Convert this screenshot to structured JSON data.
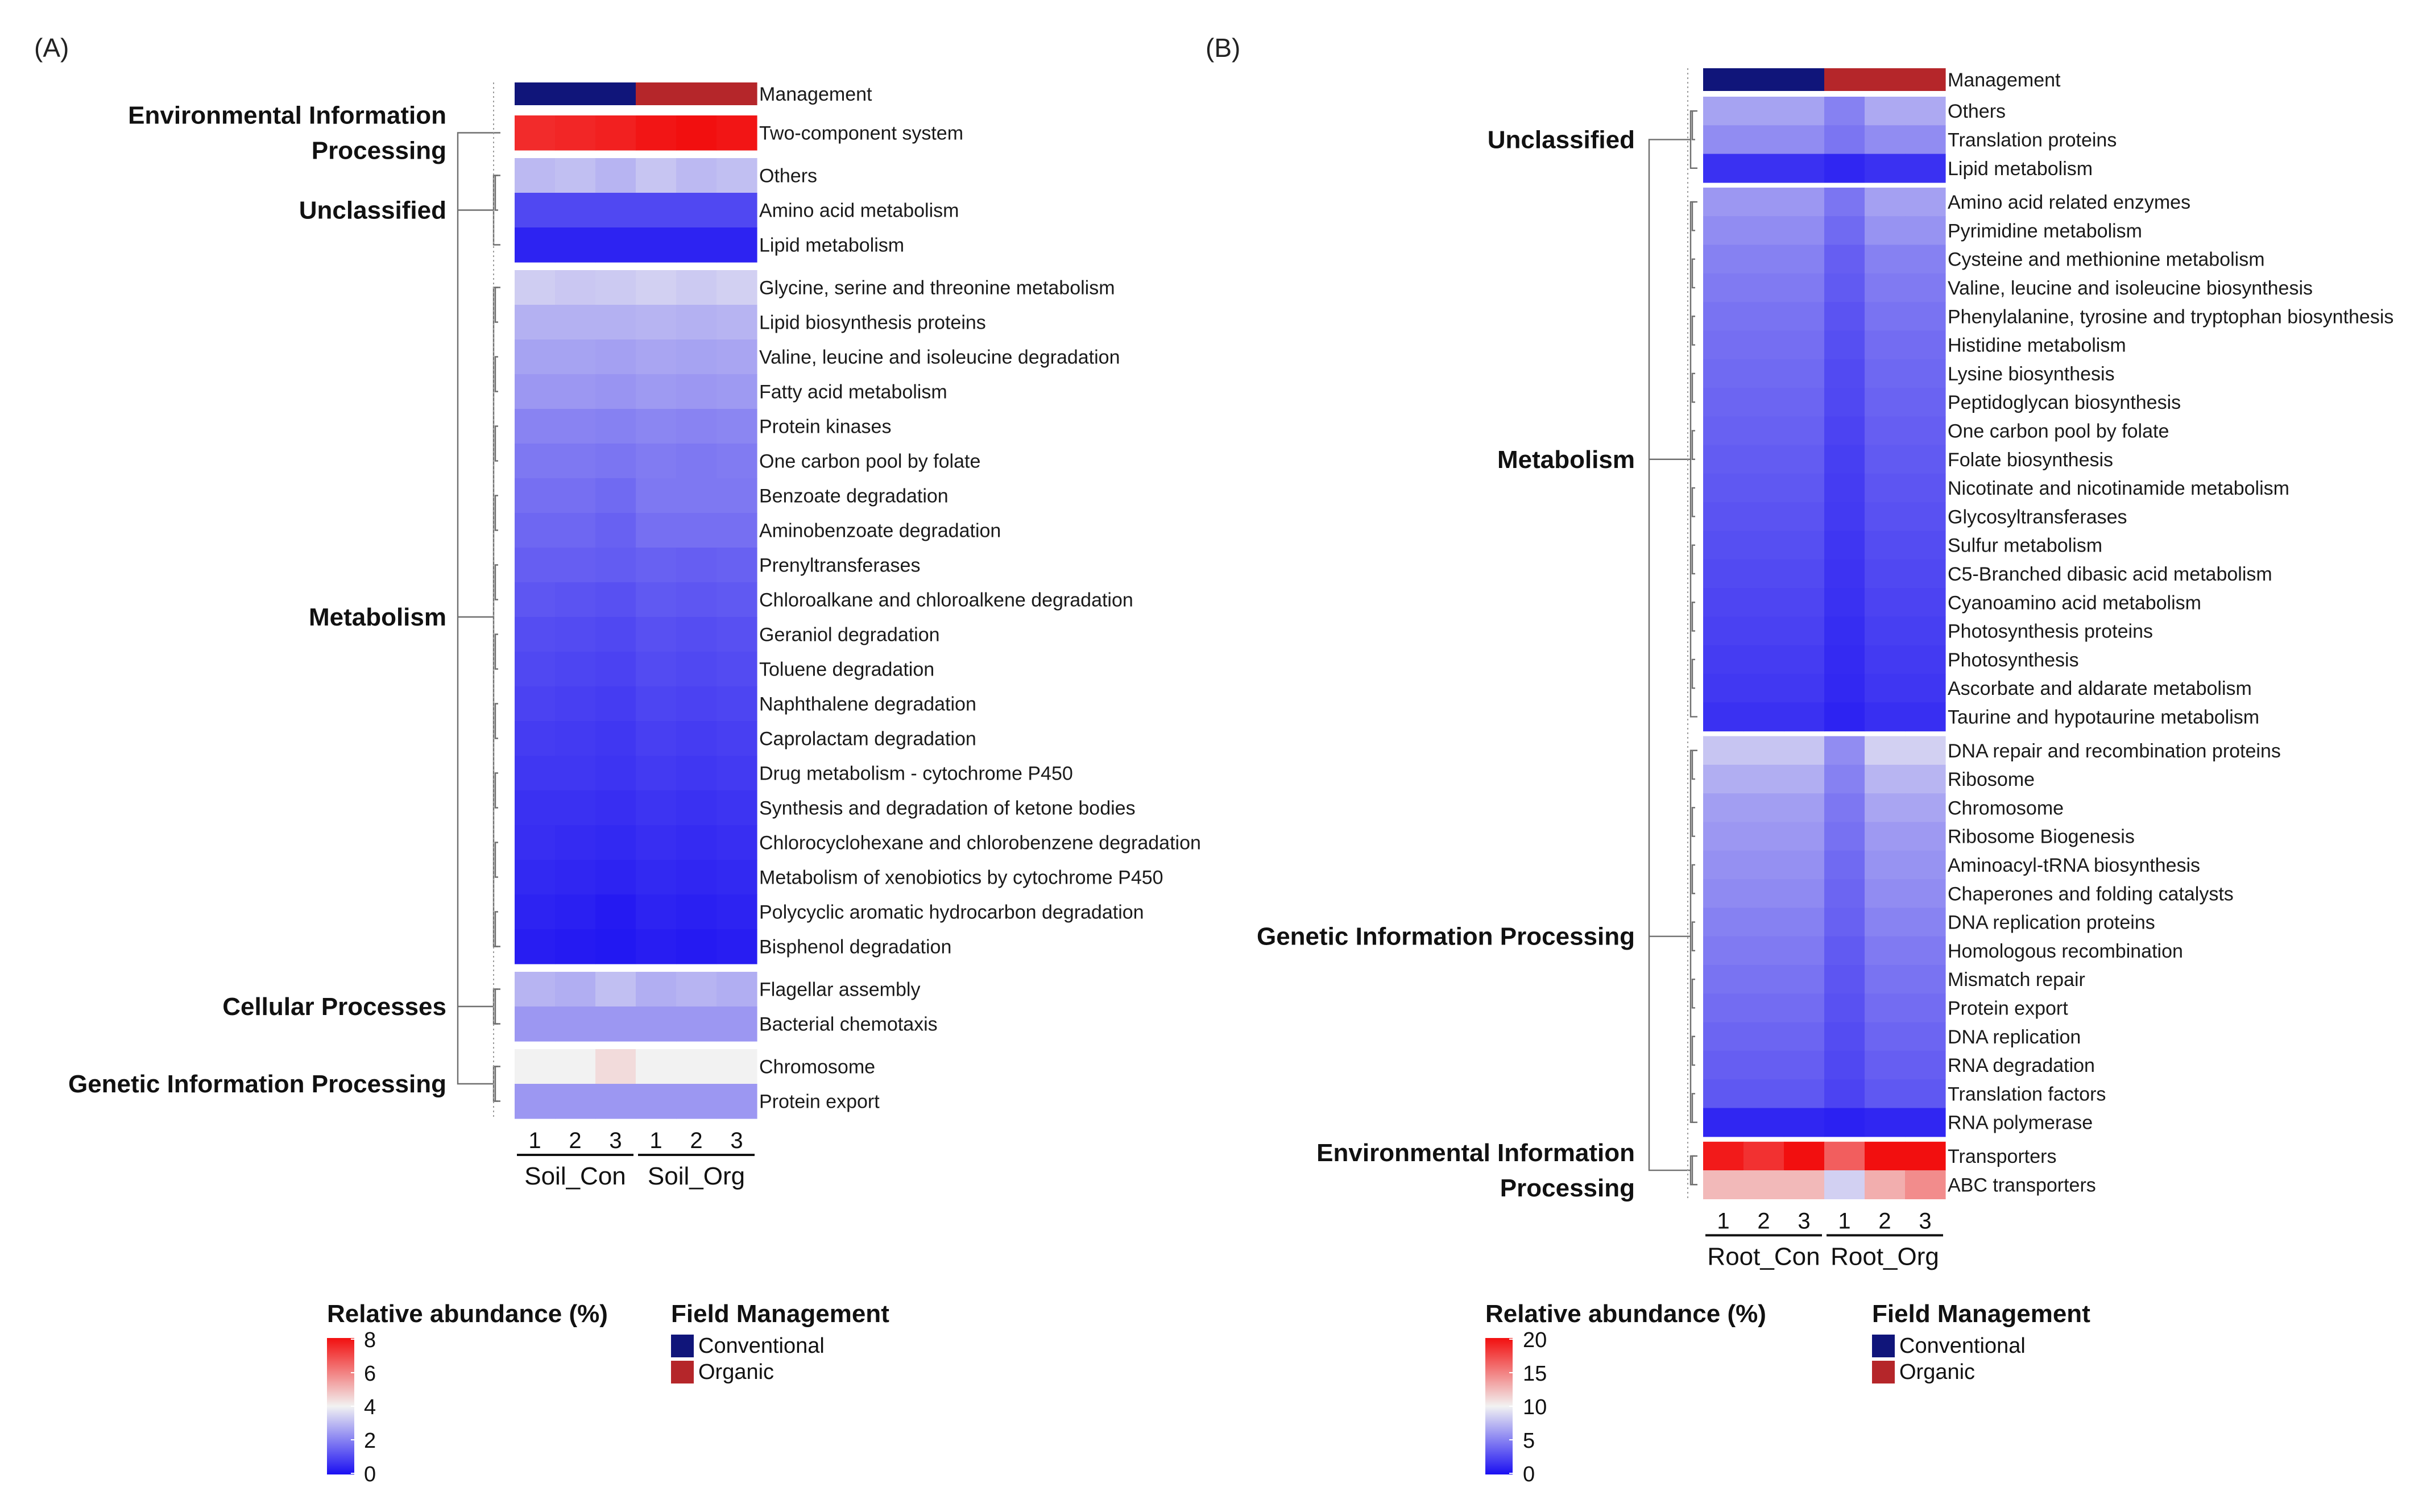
{
  "chart_data": [
    {
      "type": "heatmap",
      "panel": "(A)",
      "annotation_row": "Management",
      "column_numbers": [
        "1",
        "2",
        "3",
        "1",
        "2",
        "3"
      ],
      "groups": [
        "Soil_Con",
        "Soil_Org"
      ],
      "column_management": [
        "conventional",
        "conventional",
        "conventional",
        "organic",
        "organic",
        "organic"
      ],
      "legend": {
        "value_title": "Relative abundance (%)",
        "ticks": [
          "8",
          "6",
          "4",
          "2",
          "0"
        ],
        "range": [
          0,
          8
        ],
        "field_title": "Field Management",
        "field_items": [
          "Conventional",
          "Organic"
        ]
      },
      "categories": [
        {
          "name_lines": [
            "Environmental Information",
            "Processing"
          ],
          "rows": [
            {
              "label": "Two-component system",
              "values": [
                7.5,
                7.6,
                7.7,
                7.9,
                8.0,
                7.9
              ]
            }
          ]
        },
        {
          "name_lines": [
            "Unclassified"
          ],
          "rows": [
            {
              "label": "Others",
              "values": [
                3.0,
                3.1,
                2.9,
                3.2,
                3.0,
                3.1
              ]
            },
            {
              "label": "Amino acid metabolism",
              "values": [
                1.0,
                1.0,
                1.0,
                1.0,
                1.0,
                1.0
              ]
            },
            {
              "label": "Lipid metabolism",
              "values": [
                0.35,
                0.35,
                0.35,
                0.35,
                0.35,
                0.35
              ]
            }
          ]
        },
        {
          "name_lines": [
            "Metabolism"
          ],
          "rows": [
            {
              "label": "Glycine, serine and threonine metabolism",
              "values": [
                3.35,
                3.25,
                3.3,
                3.4,
                3.3,
                3.4
              ]
            },
            {
              "label": "Lipid biosynthesis proteins",
              "values": [
                2.85,
                2.85,
                2.85,
                2.9,
                2.85,
                2.9
              ]
            },
            {
              "label": "Valine, leucine and isoleucine degradation",
              "values": [
                2.6,
                2.6,
                2.55,
                2.65,
                2.6,
                2.65
              ]
            },
            {
              "label": "Fatty acid metabolism",
              "values": [
                2.4,
                2.4,
                2.35,
                2.45,
                2.4,
                2.45
              ]
            },
            {
              "label": "Protein kinases",
              "values": [
                2.05,
                2.05,
                2.0,
                2.1,
                2.05,
                2.1
              ]
            },
            {
              "label": "One carbon pool by folate",
              "values": [
                1.85,
                1.85,
                1.8,
                1.9,
                1.85,
                1.9
              ]
            },
            {
              "label": "Benzoate degradation",
              "values": [
                1.7,
                1.7,
                1.6,
                1.85,
                1.85,
                1.85
              ]
            },
            {
              "label": "Aminobenzoate degradation",
              "values": [
                1.55,
                1.55,
                1.45,
                1.7,
                1.7,
                1.7
              ]
            },
            {
              "label": "Prenyltransferases",
              "values": [
                1.4,
                1.4,
                1.35,
                1.45,
                1.4,
                1.45
              ]
            },
            {
              "label": "Chloroalkane and chloroalkene degradation",
              "values": [
                1.25,
                1.2,
                1.15,
                1.3,
                1.25,
                1.3
              ]
            },
            {
              "label": "Geraniol degradation",
              "values": [
                1.1,
                1.05,
                1.0,
                1.15,
                1.1,
                1.15
              ]
            },
            {
              "label": "Toluene degradation",
              "values": [
                1.0,
                0.95,
                0.9,
                1.05,
                1.0,
                1.05
              ]
            },
            {
              "label": "Naphthalene degradation",
              "values": [
                0.9,
                0.85,
                0.8,
                0.95,
                0.9,
                0.95
              ]
            },
            {
              "label": "Caprolactam degradation",
              "values": [
                0.8,
                0.75,
                0.7,
                0.85,
                0.8,
                0.85
              ]
            },
            {
              "label": "Drug metabolism - cytochrome P450",
              "values": [
                0.7,
                0.7,
                0.65,
                0.75,
                0.7,
                0.75
              ]
            },
            {
              "label": "Synthesis and degradation of ketone bodies",
              "values": [
                0.6,
                0.6,
                0.55,
                0.65,
                0.6,
                0.65
              ]
            },
            {
              "label": "Chlorocyclohexane and chlorobenzene degradation",
              "values": [
                0.55,
                0.5,
                0.45,
                0.55,
                0.5,
                0.55
              ]
            },
            {
              "label": "Metabolism of xenobiotics by cytochrome P450",
              "values": [
                0.45,
                0.4,
                0.35,
                0.45,
                0.4,
                0.45
              ]
            },
            {
              "label": "Polycyclic aromatic hydrocarbon degradation",
              "values": [
                0.35,
                0.3,
                0.2,
                0.35,
                0.3,
                0.35
              ]
            },
            {
              "label": "Bisphenol degradation",
              "values": [
                0.25,
                0.2,
                0.15,
                0.25,
                0.2,
                0.25
              ]
            }
          ]
        },
        {
          "name_lines": [
            "Cellular Processes"
          ],
          "rows": [
            {
              "label": "Flagellar assembly",
              "values": [
                2.9,
                2.8,
                3.1,
                2.8,
                2.9,
                2.8
              ]
            },
            {
              "label": "Bacterial chemotaxis",
              "values": [
                2.4,
                2.4,
                2.4,
                2.4,
                2.4,
                2.4
              ]
            }
          ]
        },
        {
          "name_lines": [
            "Genetic Information Processing"
          ],
          "rows": [
            {
              "label": "Chromosome",
              "values": [
                4.0,
                4.0,
                4.4,
                4.0,
                4.0,
                4.0
              ]
            },
            {
              "label": "Protein export",
              "values": [
                2.4,
                2.4,
                2.4,
                2.4,
                2.4,
                2.4
              ]
            }
          ]
        }
      ]
    },
    {
      "type": "heatmap",
      "panel": "(B)",
      "annotation_row": "Management",
      "column_numbers": [
        "1",
        "2",
        "3",
        "1",
        "2",
        "3"
      ],
      "groups": [
        "Root_Con",
        "Root_Org"
      ],
      "column_management": [
        "conventional",
        "conventional",
        "conventional",
        "organic",
        "organic",
        "organic"
      ],
      "legend": {
        "value_title": "Relative abundance (%)",
        "ticks": [
          "20",
          "15",
          "10",
          "5",
          "0"
        ],
        "range": [
          0,
          20
        ],
        "field_title": "Field Management",
        "field_items": [
          "Conventional",
          "Organic"
        ]
      },
      "categories": [
        {
          "name_lines": [
            "Unclassified"
          ],
          "rows": [
            {
              "label": "Others",
              "values": [
                6.5,
                6.5,
                6.5,
                5.0,
                6.8,
                6.8
              ]
            },
            {
              "label": "Translation proteins",
              "values": [
                5.5,
                5.5,
                5.5,
                4.5,
                5.5,
                5.5
              ]
            },
            {
              "label": "Lipid metabolism",
              "values": [
                1.5,
                1.5,
                1.5,
                1.0,
                1.5,
                1.5
              ]
            }
          ]
        },
        {
          "name_lines": [
            "Metabolism"
          ],
          "rows": [
            {
              "label": "Amino acid related enzymes",
              "values": [
                6.0,
                6.0,
                6.0,
                4.5,
                6.4,
                6.4
              ]
            },
            {
              "label": "Pyrimidine metabolism",
              "values": [
                5.5,
                5.5,
                5.5,
                4.0,
                5.8,
                5.8
              ]
            },
            {
              "label": "Cysteine and methionine metabolism",
              "values": [
                5.0,
                5.0,
                5.0,
                3.5,
                5.0,
                5.0
              ]
            },
            {
              "label": "Valine, leucine and isoleucine biosynthesis",
              "values": [
                4.7,
                4.7,
                4.7,
                3.3,
                4.7,
                4.7
              ]
            },
            {
              "label": "Phenylalanine, tyrosine and tryptophan biosynthesis",
              "values": [
                4.4,
                4.4,
                4.4,
                3.0,
                4.4,
                4.4
              ]
            },
            {
              "label": "Histidine metabolism",
              "values": [
                4.2,
                4.2,
                4.2,
                2.8,
                4.1,
                4.1
              ]
            },
            {
              "label": "Lysine biosynthesis",
              "values": [
                4.0,
                4.0,
                4.0,
                2.6,
                3.9,
                3.9
              ]
            },
            {
              "label": "Peptidoglycan biosynthesis",
              "values": [
                3.8,
                3.8,
                3.8,
                2.5,
                3.7,
                3.7
              ]
            },
            {
              "label": "One carbon pool by folate",
              "values": [
                3.6,
                3.6,
                3.6,
                2.3,
                3.5,
                3.5
              ]
            },
            {
              "label": "Folate biosynthesis",
              "values": [
                3.4,
                3.4,
                3.4,
                2.1,
                3.3,
                3.3
              ]
            },
            {
              "label": "Nicotinate and nicotinamide metabolism",
              "values": [
                3.2,
                3.2,
                3.2,
                2.0,
                3.1,
                3.1
              ]
            },
            {
              "label": "Glycosyltransferases",
              "values": [
                3.0,
                3.0,
                3.0,
                1.9,
                2.9,
                2.9
              ]
            },
            {
              "label": "Sulfur metabolism",
              "values": [
                2.8,
                2.8,
                2.8,
                1.7,
                2.7,
                2.7
              ]
            },
            {
              "label": "C5-Branched dibasic acid metabolism",
              "values": [
                2.6,
                2.6,
                2.6,
                1.6,
                2.5,
                2.5
              ]
            },
            {
              "label": "Cyanoamino acid metabolism",
              "values": [
                2.4,
                2.4,
                2.4,
                1.5,
                2.3,
                2.3
              ]
            },
            {
              "label": "Photosynthesis proteins",
              "values": [
                2.2,
                2.2,
                2.2,
                1.3,
                2.1,
                2.1
              ]
            },
            {
              "label": "Photosynthesis",
              "values": [
                2.0,
                2.0,
                2.0,
                1.2,
                1.9,
                1.9
              ]
            },
            {
              "label": "Ascorbate and aldarate metabolism",
              "values": [
                1.8,
                1.8,
                1.8,
                1.1,
                1.7,
                1.7
              ]
            },
            {
              "label": "Taurine and hypotaurine metabolism",
              "values": [
                1.5,
                1.5,
                1.5,
                0.9,
                1.4,
                1.4
              ]
            }
          ]
        },
        {
          "name_lines": [
            "Genetic Information Processing"
          ],
          "rows": [
            {
              "label": "DNA repair and recombination proteins",
              "values": [
                8.0,
                8.0,
                8.0,
                5.5,
                8.5,
                8.5
              ]
            },
            {
              "label": "Ribosome",
              "values": [
                7.0,
                7.0,
                7.0,
                5.0,
                7.3,
                7.3
              ]
            },
            {
              "label": "Chromosome",
              "values": [
                6.3,
                6.3,
                6.3,
                4.6,
                6.6,
                6.6
              ]
            },
            {
              "label": "Ribosome Biogenesis",
              "values": [
                6.0,
                6.0,
                6.0,
                4.3,
                6.1,
                6.1
              ]
            },
            {
              "label": "Aminoacyl-tRNA biosynthesis",
              "values": [
                5.7,
                5.7,
                5.7,
                4.0,
                5.8,
                5.8
              ]
            },
            {
              "label": "Chaperones and folding catalysts",
              "values": [
                5.4,
                5.4,
                5.4,
                3.8,
                5.5,
                5.5
              ]
            },
            {
              "label": "DNA replication proteins",
              "values": [
                5.0,
                5.0,
                5.0,
                3.6,
                5.1,
                5.1
              ]
            },
            {
              "label": "Homologous recombination",
              "values": [
                4.7,
                4.7,
                4.7,
                3.3,
                4.7,
                4.7
              ]
            },
            {
              "label": "Mismatch repair",
              "values": [
                4.4,
                4.4,
                4.4,
                3.1,
                4.4,
                4.4
              ]
            },
            {
              "label": "Protein export",
              "values": [
                4.1,
                4.1,
                4.1,
                2.9,
                4.1,
                4.1
              ]
            },
            {
              "label": "DNA replication",
              "values": [
                3.8,
                3.8,
                3.8,
                2.7,
                3.8,
                3.8
              ]
            },
            {
              "label": "RNA degradation",
              "values": [
                3.5,
                3.5,
                3.5,
                2.5,
                3.5,
                3.5
              ]
            },
            {
              "label": "Translation factors",
              "values": [
                3.2,
                3.2,
                3.2,
                2.3,
                3.2,
                3.2
              ]
            },
            {
              "label": "RNA polymerase",
              "values": [
                1.0,
                1.0,
                1.0,
                0.8,
                1.0,
                1.0
              ]
            }
          ]
        },
        {
          "name_lines": [
            "Environmental Information",
            "Processing"
          ],
          "rows": [
            {
              "label": "Transporters",
              "values": [
                19.5,
                18.5,
                20.0,
                16.5,
                20.0,
                20.0
              ]
            },
            {
              "label": "ABC transporters",
              "values": [
                12.5,
                12.5,
                12.5,
                8.5,
                13.0,
                14.5
              ]
            }
          ]
        }
      ]
    }
  ]
}
